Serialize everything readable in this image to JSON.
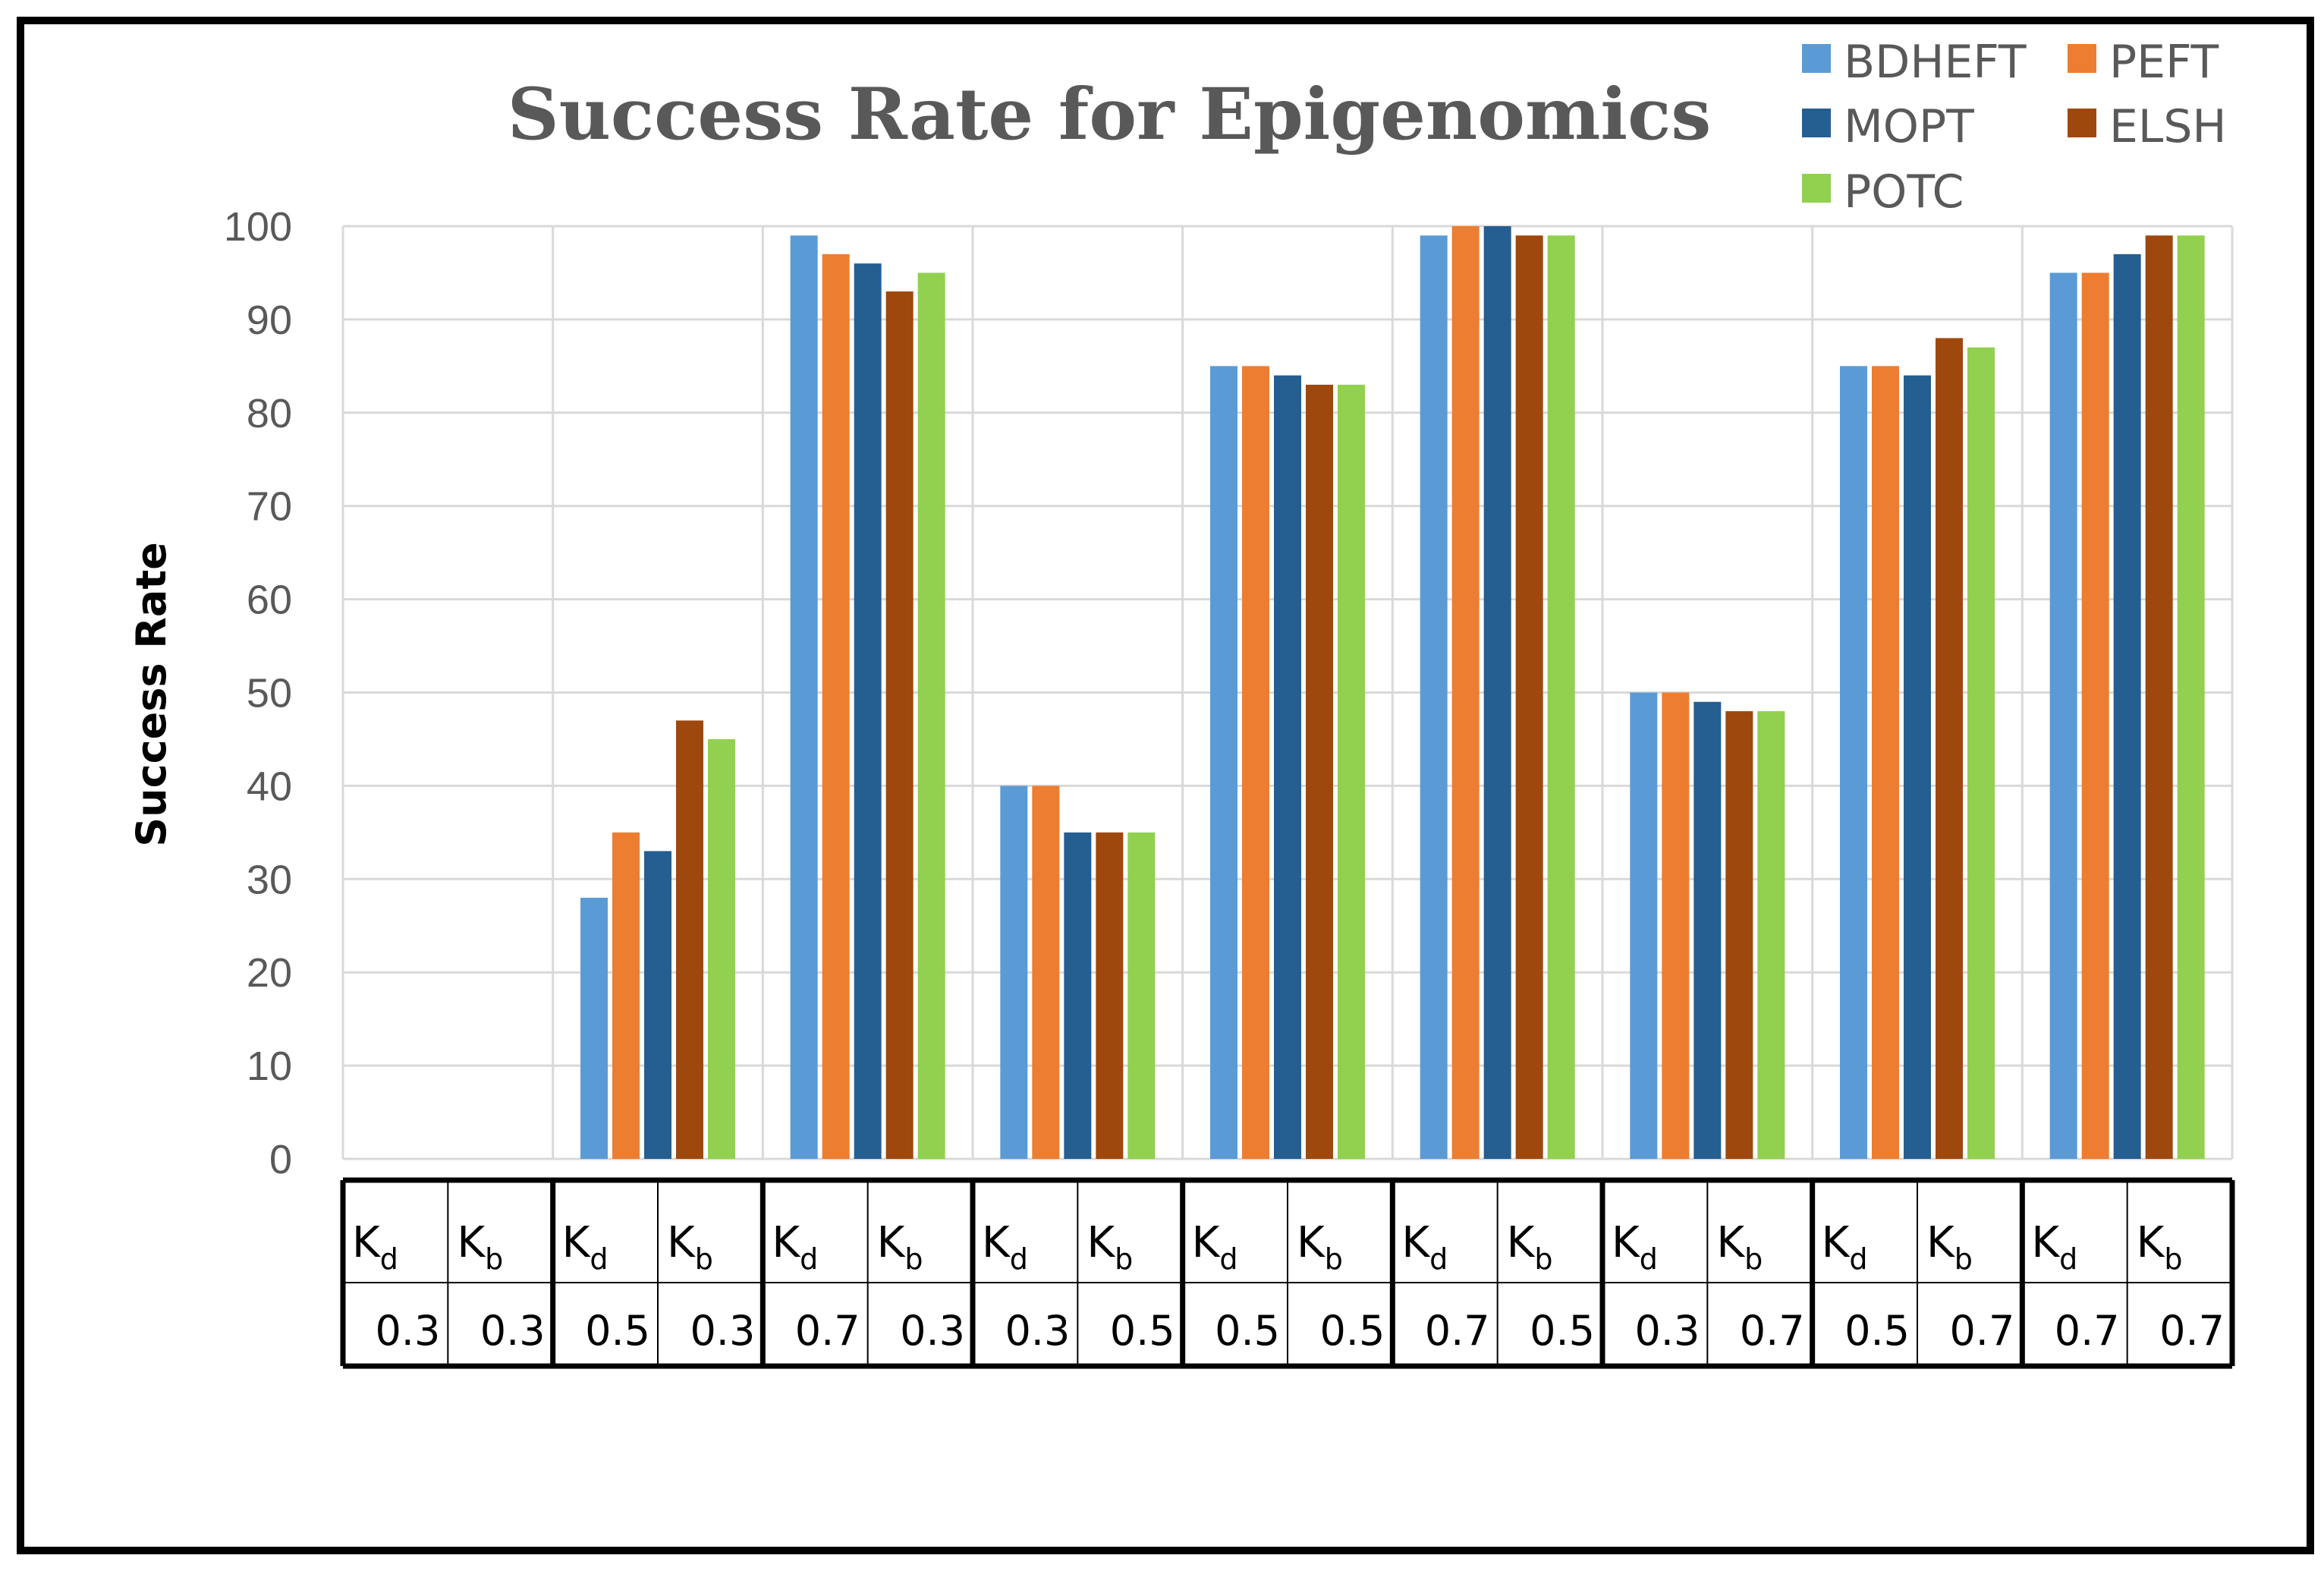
{
  "chart_data": {
    "type": "bar",
    "title": "Success Rate for Epigenomics",
    "ylabel": "Success Rate",
    "xlabel": "",
    "ylim": [
      0,
      100
    ],
    "yticks": [
      0,
      10,
      20,
      30,
      40,
      50,
      60,
      70,
      80,
      90,
      100
    ],
    "grid": true,
    "legend_position": "top-right",
    "categories": [
      {
        "kd_label": "K",
        "kd_sub": "d",
        "kb_label": "K",
        "kb_sub": "b",
        "kd": "0.3",
        "kb": "0.3"
      },
      {
        "kd_label": "K",
        "kd_sub": "d",
        "kb_label": "K",
        "kb_sub": "b",
        "kd": "0.5",
        "kb": "0.3"
      },
      {
        "kd_label": "K",
        "kd_sub": "d",
        "kb_label": "K",
        "kb_sub": "b",
        "kd": "0.7",
        "kb": "0.3"
      },
      {
        "kd_label": "K",
        "kd_sub": "d",
        "kb_label": "K",
        "kb_sub": "b",
        "kd": "0.3",
        "kb": "0.5"
      },
      {
        "kd_label": "K",
        "kd_sub": "d",
        "kb_label": "K",
        "kb_sub": "b",
        "kd": "0.5",
        "kb": "0.5"
      },
      {
        "kd_label": "K",
        "kd_sub": "d",
        "kb_label": "K",
        "kb_sub": "b",
        "kd": "0.7",
        "kb": "0.5"
      },
      {
        "kd_label": "K",
        "kd_sub": "d",
        "kb_label": "K",
        "kb_sub": "b",
        "kd": "0.3",
        "kb": "0.7"
      },
      {
        "kd_label": "K",
        "kd_sub": "d",
        "kb_label": "K",
        "kb_sub": "b",
        "kd": "0.5",
        "kb": "0.7"
      },
      {
        "kd_label": "K",
        "kd_sub": "d",
        "kb_label": "K",
        "kb_sub": "b",
        "kd": "0.7",
        "kb": "0.7"
      }
    ],
    "series": [
      {
        "name": "BDHEFT",
        "color": "#5B9BD5",
        "values": [
          0,
          28,
          99,
          40,
          85,
          99,
          50,
          85,
          95
        ]
      },
      {
        "name": "PEFT",
        "color": "#ED7D31",
        "values": [
          0,
          35,
          97,
          40,
          85,
          100,
          50,
          85,
          95
        ]
      },
      {
        "name": "MOPT",
        "color": "#255E91",
        "values": [
          0,
          33,
          96,
          35,
          84,
          100,
          49,
          84,
          97
        ]
      },
      {
        "name": "ELSH",
        "color": "#9E480E",
        "values": [
          0,
          47,
          93,
          35,
          83,
          99,
          48,
          88,
          99
        ]
      },
      {
        "name": "POTC",
        "color": "#92D050",
        "values": [
          0,
          45,
          95,
          35,
          83,
          99,
          48,
          87,
          99
        ]
      }
    ]
  }
}
